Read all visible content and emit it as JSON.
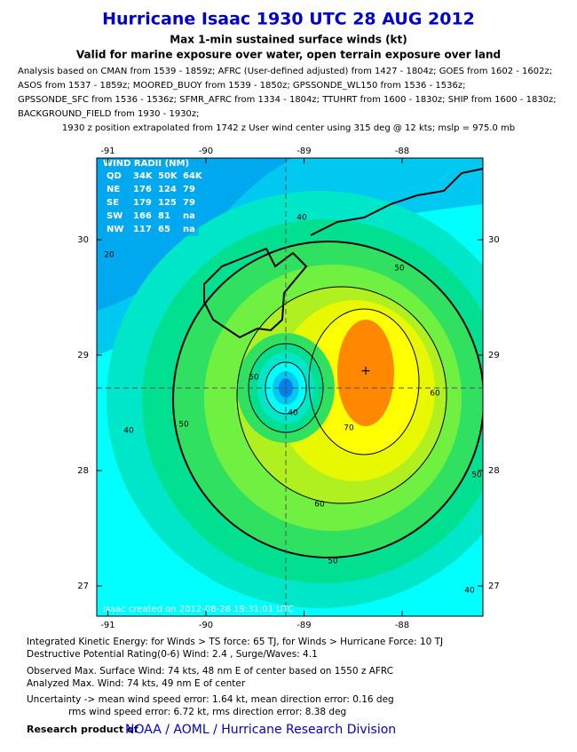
{
  "header": {
    "title": "Hurricane Isaac 1930 UTC 28 AUG 2012",
    "subtitle": "Max 1-min sustained surface winds (kt)",
    "subtitle2": "Valid for marine exposure over water, open terrain exposure over land"
  },
  "analysis": [
    "Analysis based on CMAN from 1539 - 1859z; AFRC (User-defined adjusted) from 1427 - 1804z; GOES from 1602 - 1602z;",
    "ASOS from 1537 - 1859z; MOORED_BUOY from 1539 - 1850z; GPSSONDE_WL150 from 1536 - 1536z;",
    "GPSSONDE_SFC from 1536 - 1536z; SFMR_AFRC from 1334 - 1804z; TTUHRT from 1600 - 1830z; SHIP from 1600 - 1830z;",
    "BACKGROUND_FIELD from 1930 - 1930z;"
  ],
  "position_note": "1930 z position extrapolated from 1742 z User wind center using 315 deg @ 12 kts; mslp = 975.0 mb",
  "map": {
    "lon_ticks": [
      -91,
      -90,
      -89,
      -88
    ],
    "lat_ticks": [
      27,
      28,
      29,
      30
    ],
    "wind_radii": {
      "title": "WIND RADII (NM)",
      "header": [
        "QD",
        "34K",
        "50K",
        "64K"
      ],
      "rows": [
        [
          "NE",
          "176",
          "124",
          "79"
        ],
        [
          "SE",
          "179",
          "125",
          "79"
        ],
        [
          "SW",
          "166",
          "81",
          "na"
        ],
        [
          "NW",
          "117",
          "65",
          "na"
        ]
      ]
    },
    "contour_labels": [
      20,
      40,
      50,
      40,
      50,
      60,
      70,
      60,
      50,
      40,
      50,
      40,
      50
    ],
    "stamp": "isaac    created on 2012-08-28 19:31:01 UTC"
  },
  "footer": {
    "lines": [
      "Integrated Kinetic Energy: for Winds > TS force: 65 TJ, for Winds > Hurricane Force: 10 TJ",
      "Destructive Potential Rating(0-6)   Wind: 2.4 , Surge/Waves: 4.1",
      "Observed Max. Surface Wind: 74 kts, 48 nm E of center based on 1550 z AFRC",
      "Analyzed Max. Wind: 74 kts, 49 nm  E of center",
      "Uncertainty -> mean wind speed error: 1.64 kt, mean direction error: 0.16 deg",
      "rms wind speed error: 6.72 kt, rms direction error: 8.38 deg"
    ],
    "credit_prefix": "Research product of",
    "credit": "NOAA / AOML / Hurricane Research Division"
  }
}
